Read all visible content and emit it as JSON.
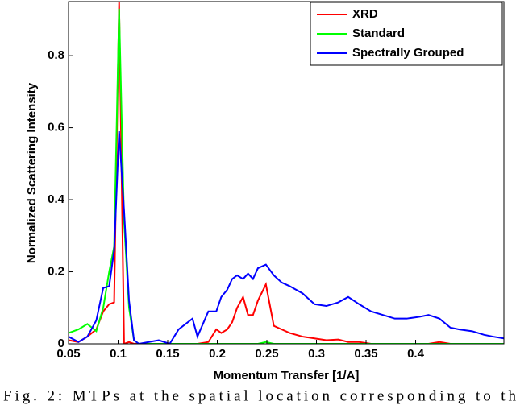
{
  "chart_data": {
    "type": "line",
    "xlabel": "Momentum Transfer [1/A]",
    "ylabel": "Normalized Scattering Intensity",
    "caption": "Fig. 2: MTPs at the spatial location corresponding to th",
    "x": [
      0.05,
      0.06,
      0.069,
      0.078,
      0.085,
      0.091,
      0.096,
      0.101,
      0.106,
      0.111,
      0.116,
      0.121,
      0.131,
      0.141,
      0.152,
      0.161,
      0.175,
      0.18,
      0.191,
      0.199,
      0.204,
      0.21,
      0.215,
      0.22,
      0.226,
      0.231,
      0.236,
      0.241,
      0.249,
      0.257,
      0.265,
      0.273,
      0.286,
      0.298,
      0.31,
      0.322,
      0.332,
      0.343,
      0.355,
      0.367,
      0.379,
      0.391,
      0.404,
      0.413,
      0.424,
      0.435,
      0.444,
      0.457,
      0.469,
      0.478,
      0.489
    ],
    "series": [
      {
        "name": "XRD",
        "color": "#ff0000",
        "values": [
          0.01,
          0.005,
          0.02,
          0.04,
          0.09,
          0.11,
          0.115,
          0.95,
          0,
          0.005,
          0,
          0,
          0,
          0,
          0,
          0,
          0,
          0,
          0.005,
          0.04,
          0.03,
          0.04,
          0.06,
          0.1,
          0.13,
          0.08,
          0.08,
          0.12,
          0.165,
          0.05,
          0.04,
          0.03,
          0.02,
          0.015,
          0.01,
          0.012,
          0.005,
          0.005,
          0,
          0,
          0,
          0,
          0,
          0,
          0.005,
          0,
          0,
          0,
          0,
          0,
          0
        ]
      },
      {
        "name": "Standard",
        "color": "#00ff00",
        "values": [
          0.03,
          0.04,
          0.055,
          0.035,
          0.1,
          0.2,
          0.27,
          0.93,
          0.34,
          0.1,
          0.01,
          0,
          0,
          0,
          0,
          0,
          0,
          0,
          0,
          0,
          0,
          0,
          0,
          0,
          0,
          0,
          0,
          0,
          0.005,
          0,
          0,
          0,
          0,
          0,
          0,
          0,
          0,
          0,
          0,
          0,
          0,
          0,
          0,
          0,
          0,
          0,
          0,
          0,
          0,
          0,
          0
        ]
      },
      {
        "name": "Spectrally Grouped",
        "color": "#0000ff",
        "values": [
          0.02,
          0.005,
          0.02,
          0.065,
          0.155,
          0.16,
          0.26,
          0.59,
          0.37,
          0.12,
          0.01,
          0,
          0.005,
          0.01,
          0,
          0.04,
          0.07,
          0.02,
          0.09,
          0.09,
          0.13,
          0.15,
          0.18,
          0.19,
          0.18,
          0.195,
          0.18,
          0.21,
          0.22,
          0.19,
          0.17,
          0.16,
          0.14,
          0.11,
          0.105,
          0.115,
          0.13,
          0.11,
          0.09,
          0.08,
          0.07,
          0.07,
          0.075,
          0.08,
          0.07,
          0.045,
          0.04,
          0.035,
          0.025,
          0.02,
          0.015
        ]
      }
    ],
    "xlim": [
      0.05,
      0.489
    ],
    "ylim": [
      0,
      0.95
    ],
    "xticks": [
      0.05,
      0.1,
      0.15,
      0.2,
      0.25,
      0.3,
      0.35,
      0.4
    ],
    "yticks": [
      0,
      0.2,
      0.4,
      0.6,
      0.8
    ],
    "legend": "upper right"
  }
}
